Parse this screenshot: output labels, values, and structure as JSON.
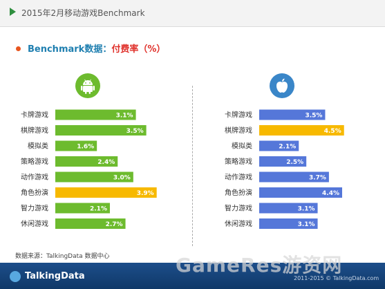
{
  "header": {
    "title": "2015年2月移动游戏Benchmark"
  },
  "heading": {
    "main": "Benchmark数据：",
    "sub": "付费率（%）"
  },
  "icons": {
    "left": "android-icon",
    "right": "apple-icon"
  },
  "colors": {
    "green": "#6dbb2e",
    "blue": "#5577d9",
    "highlight": "#f7b900",
    "title_arrow": "#2f8f3f",
    "heading_dot": "#e8551f"
  },
  "source": "数据来源：TalkingData 数据中心",
  "footer": {
    "logo": "TalkingData",
    "watermark": "GameRes游资网",
    "copyright": "2011-2015 © TalkingData.com"
  },
  "chart_data": [
    {
      "type": "bar",
      "orientation": "horizontal",
      "platform_icon": "android-icon",
      "categories": [
        "卡牌游戏",
        "棋牌游戏",
        "模拟类",
        "策略游戏",
        "动作游戏",
        "角色扮演",
        "智力游戏",
        "休闲游戏"
      ],
      "values": [
        3.1,
        3.5,
        1.6,
        2.4,
        3.0,
        3.9,
        2.1,
        2.7
      ],
      "value_labels": [
        "3.1%",
        "3.5%",
        "1.6%",
        "2.4%",
        "3.0%",
        "3.9%",
        "2.1%",
        "2.7%"
      ],
      "highlight_index": 5,
      "xlim": [
        0,
        4.6
      ]
    },
    {
      "type": "bar",
      "orientation": "horizontal",
      "platform_icon": "apple-icon",
      "categories": [
        "卡牌游戏",
        "棋牌游戏",
        "模拟类",
        "策略游戏",
        "动作游戏",
        "角色扮演",
        "智力游戏",
        "休闲游戏"
      ],
      "values": [
        3.5,
        4.5,
        2.1,
        2.5,
        3.7,
        4.4,
        3.1,
        3.1
      ],
      "value_labels": [
        "3.5%",
        "4.5%",
        "2.1%",
        "2.5%",
        "3.7%",
        "4.4%",
        "3.1%",
        "3.1%"
      ],
      "highlight_index": 1,
      "xlim": [
        0,
        5.5
      ]
    }
  ]
}
